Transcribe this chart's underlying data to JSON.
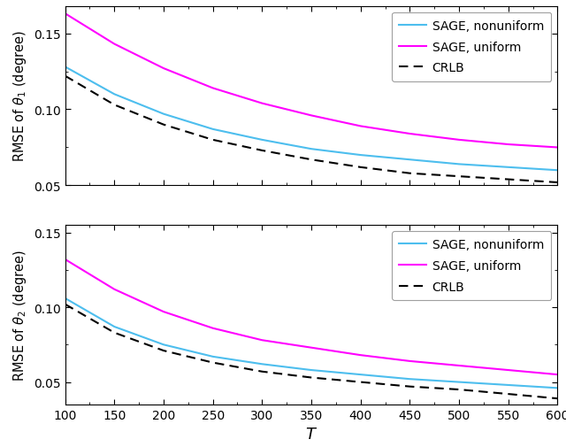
{
  "T": [
    100,
    150,
    200,
    250,
    300,
    350,
    400,
    450,
    500,
    550,
    600
  ],
  "theta1_sage_nonuniform": [
    0.128,
    0.11,
    0.097,
    0.087,
    0.08,
    0.074,
    0.07,
    0.067,
    0.064,
    0.062,
    0.06
  ],
  "theta1_sage_uniform": [
    0.163,
    0.143,
    0.127,
    0.114,
    0.104,
    0.096,
    0.089,
    0.084,
    0.08,
    0.077,
    0.075
  ],
  "theta1_crlb": [
    0.122,
    0.103,
    0.09,
    0.08,
    0.073,
    0.067,
    0.062,
    0.058,
    0.056,
    0.054,
    0.052
  ],
  "theta2_sage_nonuniform": [
    0.106,
    0.087,
    0.075,
    0.067,
    0.062,
    0.058,
    0.055,
    0.052,
    0.05,
    0.048,
    0.046
  ],
  "theta2_sage_uniform": [
    0.132,
    0.112,
    0.097,
    0.086,
    0.078,
    0.073,
    0.068,
    0.064,
    0.061,
    0.058,
    0.055
  ],
  "theta2_crlb": [
    0.102,
    0.083,
    0.071,
    0.063,
    0.057,
    0.053,
    0.05,
    0.047,
    0.045,
    0.042,
    0.039
  ],
  "color_nonuniform": "#4DBEEE",
  "color_uniform": "#FF00FF",
  "color_crlb": "#000000",
  "xlabel": "$T$",
  "ylabel1": "RMSE of $\\theta_1$ (degree)",
  "ylabel2": "RMSE of $\\theta_2$ (degree)",
  "legend_labels": [
    "SAGE, nonuniform",
    "SAGE, uniform",
    "CRLB"
  ],
  "xlim": [
    100,
    600
  ],
  "ylim1": [
    0.05,
    0.168
  ],
  "ylim2": [
    0.035,
    0.155
  ],
  "yticks1": [
    0.05,
    0.1,
    0.15
  ],
  "yticks2": [
    0.05,
    0.1,
    0.15
  ],
  "xticks": [
    100,
    150,
    200,
    250,
    300,
    350,
    400,
    450,
    500,
    550,
    600
  ]
}
